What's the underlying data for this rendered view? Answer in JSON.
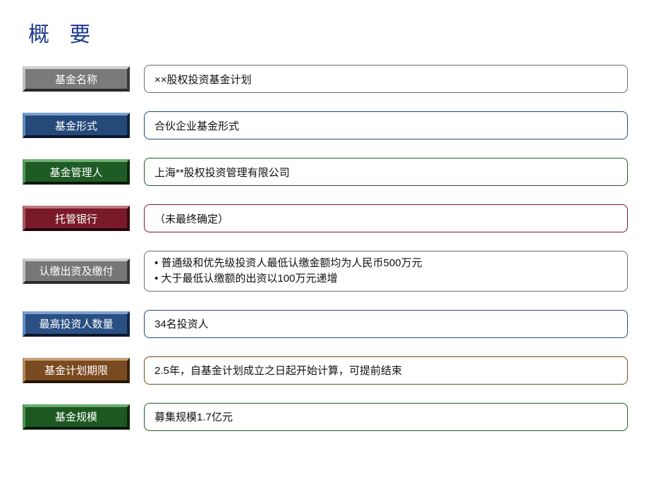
{
  "title": "概 要",
  "title_color": "#1f3a93",
  "background": "#ffffff",
  "rows": [
    {
      "label": "基金名称",
      "value": "××股权投资基金计划",
      "label_bevel": "bevel-gray",
      "box_class": "bx-gray"
    },
    {
      "label": "基金形式",
      "value": "合伙企业基金形式",
      "label_bevel": "bevel-blue",
      "box_class": "bx-blue"
    },
    {
      "label": "基金管理人",
      "value": "上海**股权投资管理有限公司",
      "label_bevel": "bevel-green",
      "box_class": "bx-green"
    },
    {
      "label": "托管银行",
      "value": "（未最终确定）",
      "label_bevel": "bevel-red",
      "box_class": "bx-red"
    },
    {
      "label": "认缴出资及缴付",
      "bullets": [
        "普通级和优先级投资人最低认缴金额均为人民币500万元",
        "大于最低认缴额的出资以100万元递增"
      ],
      "label_bevel": "bevel-gray2",
      "box_class": "bx-gray"
    },
    {
      "label": "最高投资人数量",
      "value": "34名投资人",
      "label_bevel": "bevel-blue2",
      "box_class": "bx-blue"
    },
    {
      "label": "基金计划期限",
      "value": "2.5年，自基金计划成立之日起开始计算，可提前结束",
      "label_bevel": "bevel-brown",
      "box_class": "bx-brown"
    },
    {
      "label": "基金规模",
      "value": "募集规模1.7亿元",
      "label_bevel": "bevel-green2",
      "box_class": "bx-green"
    }
  ]
}
